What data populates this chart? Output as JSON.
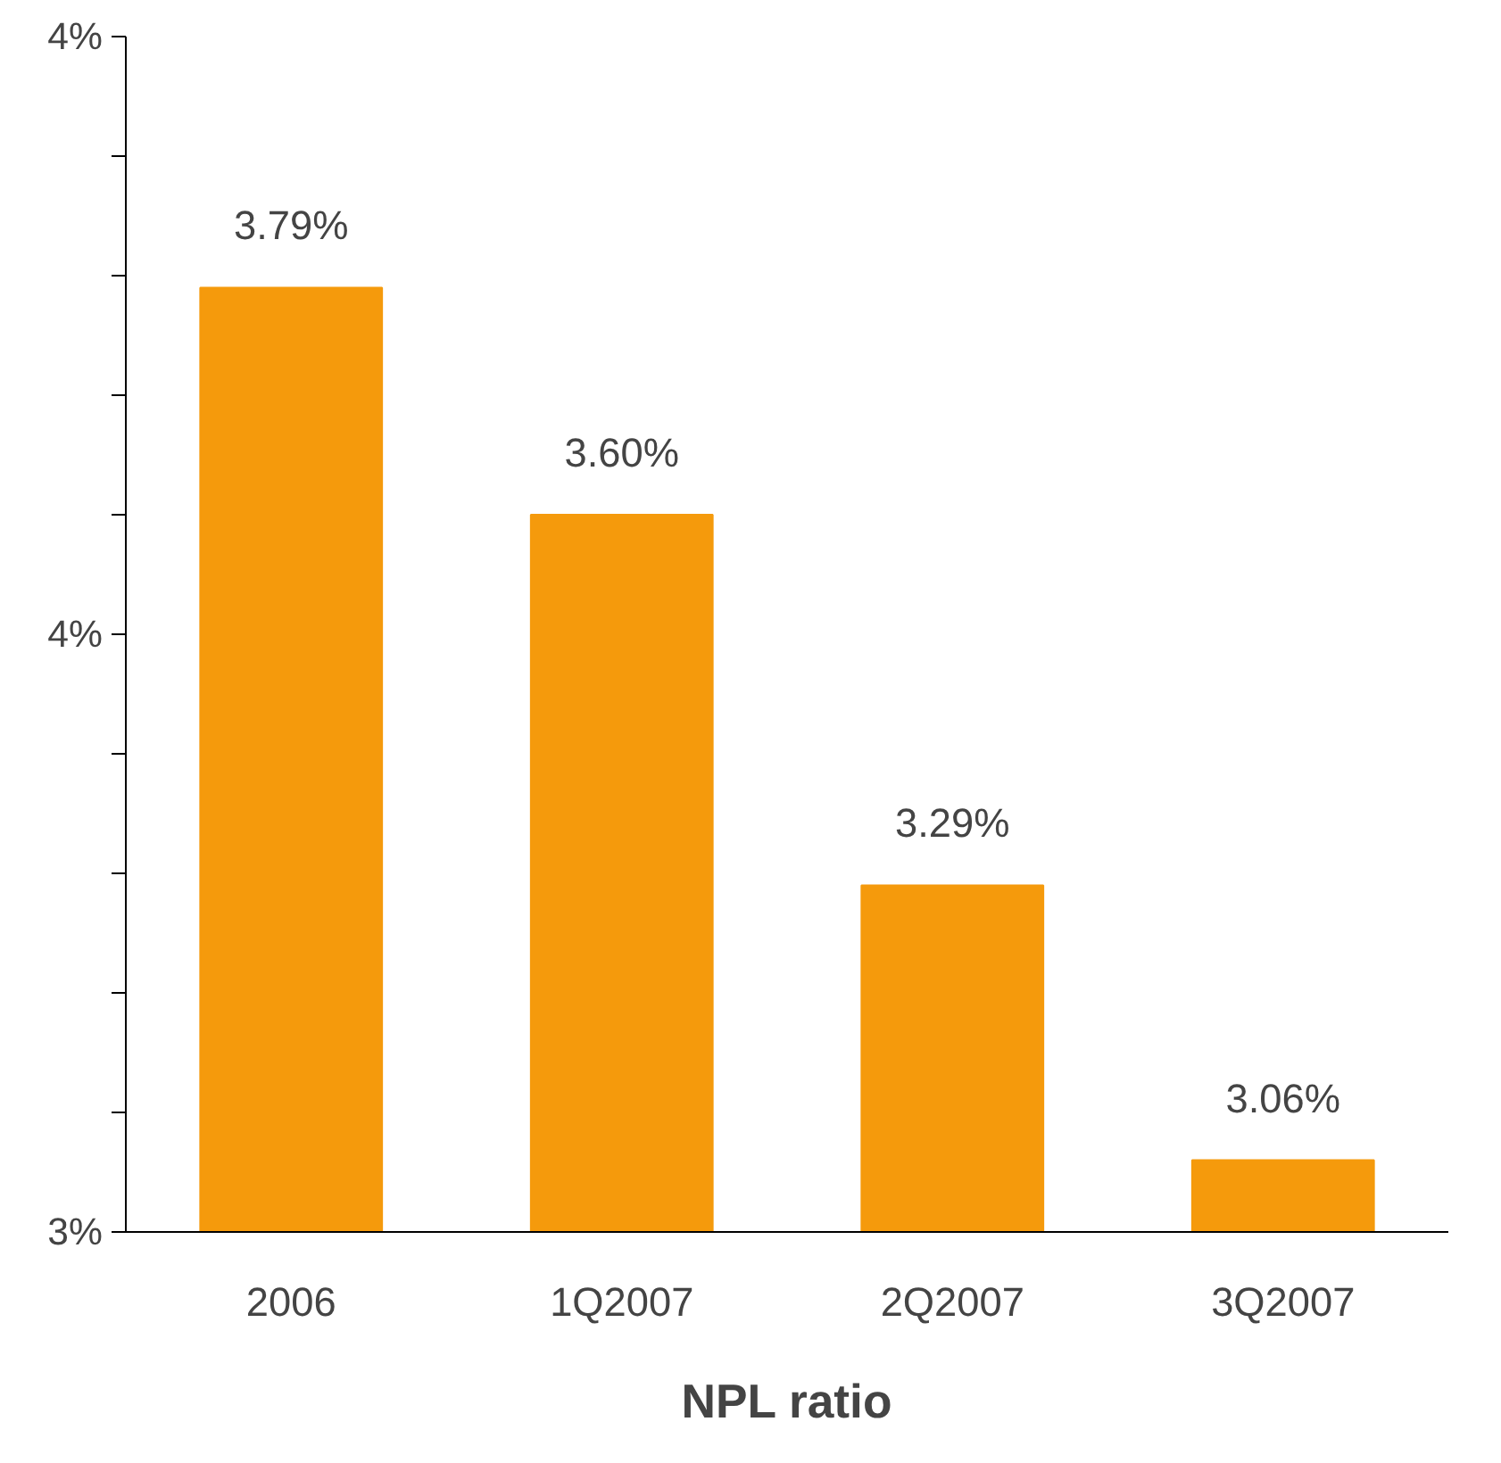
{
  "chart_data": {
    "type": "bar",
    "xlabel": "NPL ratio",
    "categories": [
      "2006",
      "1Q2007",
      "2Q2007",
      "3Q2007"
    ],
    "values": [
      3.79,
      3.6,
      3.29,
      3.06
    ],
    "value_labels": [
      "3.79%",
      "3.60%",
      "3.29%",
      "3.06%"
    ],
    "color": "#f59a0c",
    "ylim": [
      3,
      4
    ],
    "yticks": [
      {
        "value": 3,
        "label": "3%"
      },
      {
        "value": 3.1,
        "label": null
      },
      {
        "value": 3.2,
        "label": null
      },
      {
        "value": 3.3,
        "label": null
      },
      {
        "value": 3.4,
        "label": null
      },
      {
        "value": 3.5,
        "label": "4%"
      },
      {
        "value": 3.6,
        "label": null
      },
      {
        "value": 3.7,
        "label": null
      },
      {
        "value": 3.8,
        "label": null
      },
      {
        "value": 3.9,
        "label": null
      },
      {
        "value": 4,
        "label": "4%"
      }
    ],
    "grid": false
  }
}
